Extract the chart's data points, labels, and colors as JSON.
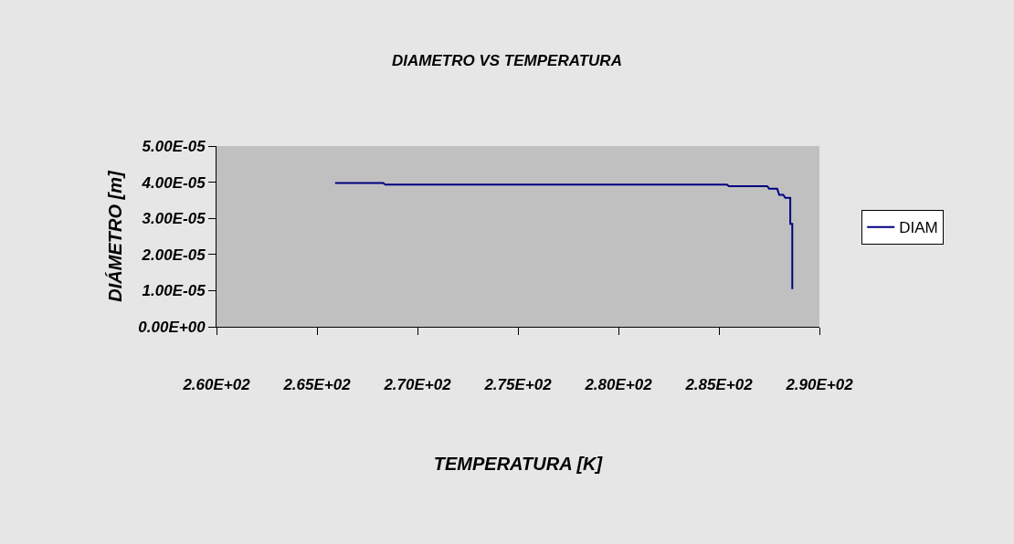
{
  "chart_data": {
    "type": "line",
    "title": "DIAMETRO VS TEMPERATURA",
    "xlabel": "TEMPERATURA [K]",
    "ylabel": "DIÁMETRO [m]",
    "x": [
      265.9,
      268.3,
      268.4,
      285.4,
      285.5,
      287.4,
      287.5,
      287.9,
      288.0,
      288.2,
      288.3,
      288.55,
      288.55,
      288.65,
      288.65
    ],
    "series": [
      {
        "name": "DIAM",
        "color": "#000080",
        "values": [
          3.98e-05,
          3.98e-05,
          3.93e-05,
          3.93e-05,
          3.89e-05,
          3.89e-05,
          3.82e-05,
          3.82e-05,
          3.65e-05,
          3.65e-05,
          3.57e-05,
          3.57e-05,
          2.85e-05,
          2.85e-05,
          1.04e-05
        ]
      }
    ],
    "xlim": [
      260,
      290
    ],
    "xticks": [
      {
        "value": 260,
        "label": "2.60E+02"
      },
      {
        "value": 265,
        "label": "2.65E+02"
      },
      {
        "value": 270,
        "label": "2.70E+02"
      },
      {
        "value": 275,
        "label": "2.75E+02"
      },
      {
        "value": 280,
        "label": "2.80E+02"
      },
      {
        "value": 285,
        "label": "2.85E+02"
      },
      {
        "value": 290,
        "label": "2.90E+02"
      }
    ],
    "ylim": [
      0,
      5e-05
    ],
    "yticks": [
      {
        "value": 0,
        "label": "0.00E+00"
      },
      {
        "value": 1e-05,
        "label": "1.00E-05"
      },
      {
        "value": 2e-05,
        "label": "2.00E-05"
      },
      {
        "value": 3e-05,
        "label": "3.00E-05"
      },
      {
        "value": 4e-05,
        "label": "4.00E-05"
      },
      {
        "value": 5e-05,
        "label": "5.00E-05"
      }
    ],
    "grid": false,
    "legend": "right",
    "marker": "none",
    "line_style": "solid"
  }
}
